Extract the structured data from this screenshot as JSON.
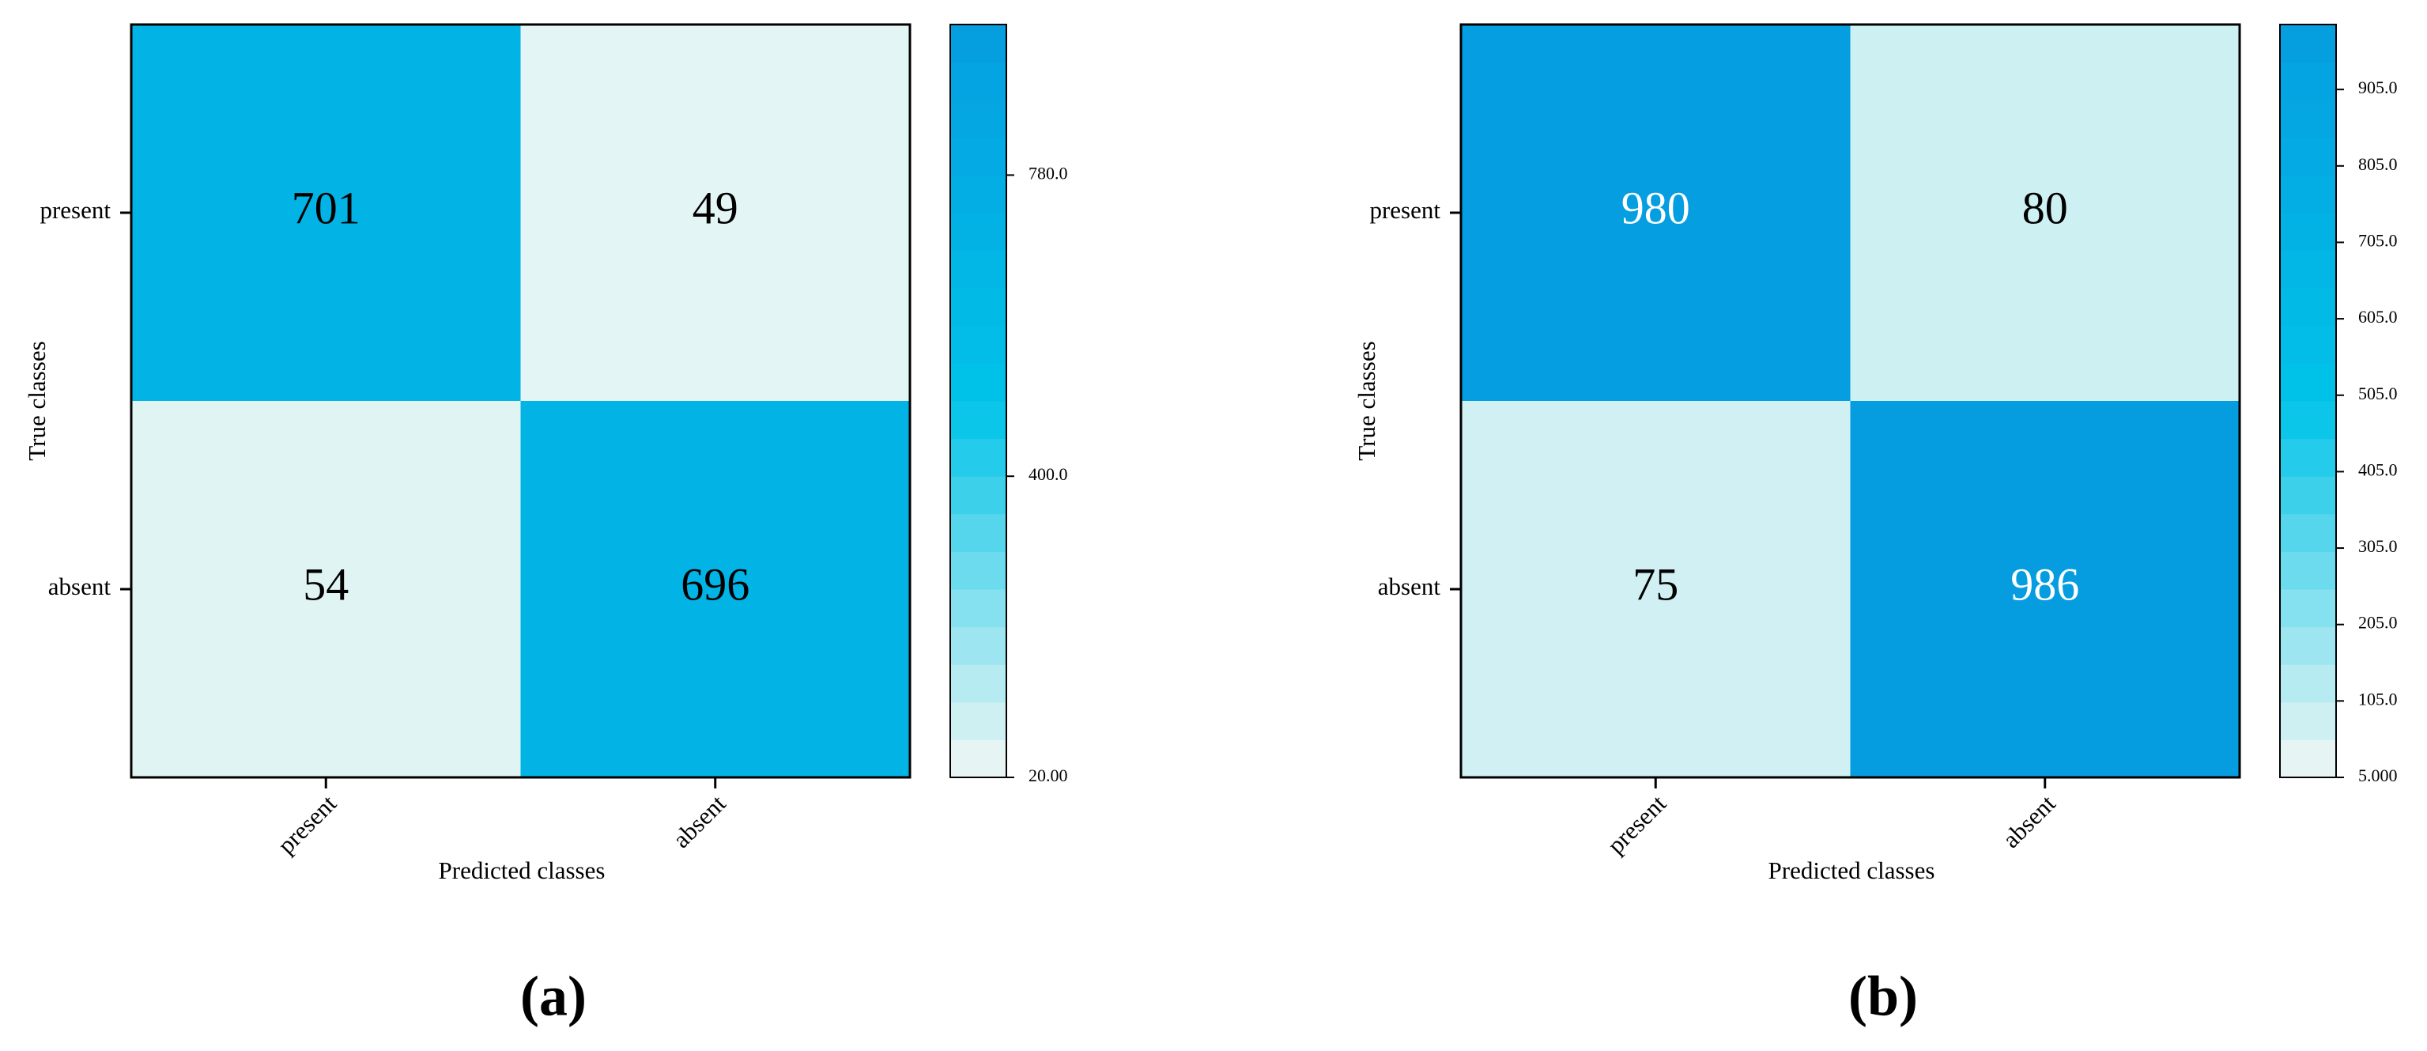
{
  "chart_data": [
    {
      "type": "heatmap",
      "label": "(a)",
      "x_label": "Predicted classes",
      "y_label": "True classes",
      "x_categories": [
        "present",
        "absent"
      ],
      "y_categories": [
        "present",
        "absent"
      ],
      "values": [
        [
          701,
          49
        ],
        [
          54,
          696
        ]
      ],
      "zlim": [
        20,
        970
      ],
      "zticks": [
        {
          "value": 20,
          "label": "20.00"
        },
        {
          "value": 400,
          "label": "400.0"
        },
        {
          "value": 780,
          "label": "780.0"
        }
      ],
      "colormap": [
        "#f2f8f5",
        "#00c3e8",
        "#059de0"
      ]
    },
    {
      "type": "heatmap",
      "label": "(b)",
      "x_label": "Predicted classes",
      "y_label": "True classes",
      "x_categories": [
        "present",
        "absent"
      ],
      "y_categories": [
        "present",
        "absent"
      ],
      "values": [
        [
          980,
          80
        ],
        [
          75,
          986
        ]
      ],
      "zlim": [
        5,
        990
      ],
      "zticks": [
        {
          "value": 5,
          "label": "5.000"
        },
        {
          "value": 105,
          "label": "105.0"
        },
        {
          "value": 205,
          "label": "205.0"
        },
        {
          "value": 305,
          "label": "305.0"
        },
        {
          "value": 405,
          "label": "405.0"
        },
        {
          "value": 505,
          "label": "505.0"
        },
        {
          "value": 605,
          "label": "605.0"
        },
        {
          "value": 705,
          "label": "705.0"
        },
        {
          "value": 805,
          "label": "805.0"
        },
        {
          "value": 905,
          "label": "905.0"
        }
      ],
      "colormap": [
        "#f2f8f5",
        "#00c3e8",
        "#059de0"
      ]
    }
  ]
}
